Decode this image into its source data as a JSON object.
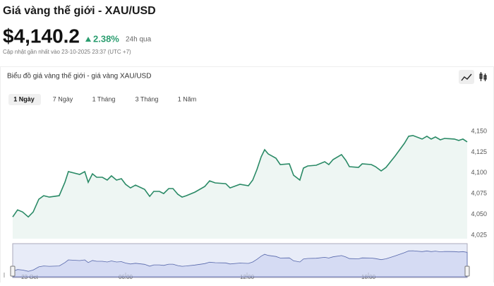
{
  "header": {
    "title": "Giá vàng thế giới - XAU/USD",
    "price": "$4,140.2",
    "change": "2.38%",
    "change_period": "24h qua",
    "updated": "Cập nhật gần nhất vào 23-10-2025 23:37 (UTC +7)"
  },
  "chart_panel": {
    "title": "Biểu đồ giá vàng thế giới - giá vàng XAU/USD",
    "ranges": [
      "1 Ngày",
      "7 Ngày",
      "1 Tháng",
      "3 Tháng",
      "1 Năm"
    ]
  },
  "chart_data": {
    "type": "line",
    "x": [
      0.42,
      0.66,
      0.91,
      1.19,
      1.43,
      1.71,
      1.95,
      2.23,
      2.72,
      3.0,
      3.17,
      3.73,
      3.98,
      4.15,
      4.36,
      4.57,
      4.85,
      5.09,
      5.3,
      5.55,
      5.79,
      6.0,
      6.24,
      6.49,
      6.94,
      7.19,
      7.39,
      7.67,
      7.88,
      8.13,
      8.34,
      8.58,
      8.79,
      9.0,
      9.42,
      9.91,
      10.15,
      10.43,
      10.95,
      11.16,
      11.65,
      12.07,
      12.28,
      12.49,
      12.7,
      12.87,
      13.05,
      13.43,
      13.64,
      14.09,
      14.3,
      14.61,
      14.79,
      15.0,
      15.42,
      15.84,
      16.04,
      16.25,
      16.67,
      16.88,
      17.06,
      17.51,
      17.69,
      18.14,
      18.35,
      18.63,
      18.87,
      19.32,
      19.78,
      19.99,
      20.2,
      20.65,
      20.89,
      21.1,
      21.31,
      21.55,
      21.76,
      22.25,
      22.46,
      22.67,
      22.88
    ],
    "series": [
      {
        "color": "#2a8a66",
        "values": [
          4047.1,
          4055.6,
          4053.1,
          4047.1,
          4053.1,
          4068.4,
          4072.7,
          4071.0,
          4072.7,
          4088.8,
          4101.6,
          4098.2,
          4101.6,
          4088.8,
          4099.0,
          4094.8,
          4094.8,
          4091.4,
          4096.5,
          4091.4,
          4093.1,
          4086.3,
          4082.0,
          4085.4,
          4080.3,
          4071.8,
          4077.8,
          4077.8,
          4075.2,
          4081.2,
          4081.2,
          4074.4,
          4071.0,
          4072.7,
          4076.9,
          4083.7,
          4090.5,
          4088.0,
          4087.1,
          4082.0,
          4086.3,
          4084.6,
          4091.4,
          4104.1,
          4119.4,
          4127.9,
          4122.8,
          4117.7,
          4110.1,
          4110.9,
          4097.3,
          4091.4,
          4105.8,
          4108.4,
          4109.2,
          4113.5,
          4110.1,
          4116.0,
          4122.0,
          4115.2,
          4107.5,
          4106.7,
          4110.9,
          4110.1,
          4107.5,
          4102.4,
          4106.7,
          4120.3,
          4135.6,
          4144.1,
          4144.9,
          4140.7,
          4144.1,
          4140.7,
          4143.2,
          4139.8,
          4141.5,
          4140.7,
          4139.0,
          4140.7,
          4137.3
        ]
      }
    ],
    "xlim": [
      0.42,
      22.88
    ],
    "xticks": [
      {
        "value": 0,
        "label": "23 Oct"
      },
      {
        "value": 6,
        "label": "06:00"
      },
      {
        "value": 12,
        "label": "12:00"
      },
      {
        "value": 18,
        "label": "18:00"
      }
    ],
    "ylim": [
      4021,
      4172
    ],
    "yticks": [
      {
        "value": 4025,
        "label": "4,025"
      },
      {
        "value": 4050,
        "label": "4,050"
      },
      {
        "value": 4075,
        "label": "4,075"
      },
      {
        "value": 4100,
        "label": "4,100"
      },
      {
        "value": 4125,
        "label": "4,125"
      },
      {
        "value": 4150,
        "label": "4,150"
      }
    ],
    "grid": false
  }
}
